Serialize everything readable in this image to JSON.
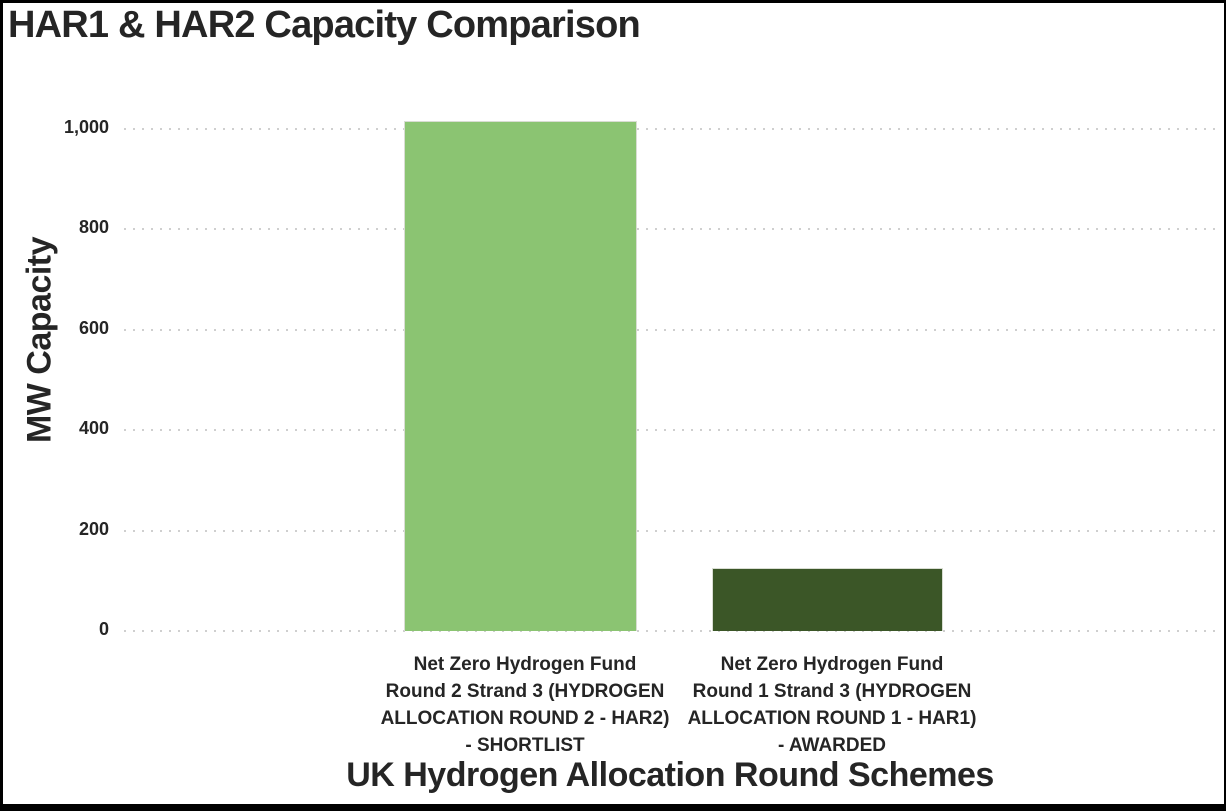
{
  "chart": {
    "title": "HAR1 & HAR2 Capacity Comparison",
    "y_axis": {
      "label": "MW Capacity",
      "ticks": [
        "1,000",
        "800",
        "600",
        "400",
        "200",
        "0"
      ]
    },
    "x_axis": {
      "label": "UK Hydrogen Allocation Round Schemes"
    },
    "category_label_lines": [
      [
        "Net Zero Hydrogen Fund",
        "Round 2 Strand 3 (HYDROGEN",
        "ALLOCATION ROUND 2 - HAR2)",
        "- SHORTLIST"
      ],
      [
        "Net Zero Hydrogen Fund",
        "Round 1 Strand 3 (HYDROGEN",
        "ALLOCATION ROUND 1 - HAR1)",
        "- AWARDED"
      ]
    ]
  },
  "chart_data": {
    "type": "bar",
    "title": "HAR1 & HAR2 Capacity Comparison",
    "xlabel": "UK Hydrogen Allocation Round Schemes",
    "ylabel": "MW Capacity",
    "categories": [
      "Net Zero Hydrogen Fund Round 2 Strand 3 (HYDROGEN ALLOCATION ROUND 2 - HAR2) - SHORTLIST",
      "Net Zero Hydrogen Fund Round 1 Strand 3 (HYDROGEN ALLOCATION ROUND 1 - HAR1) - AWARDED"
    ],
    "values": [
      1015,
      125
    ],
    "unit": "MW",
    "bar_colors": [
      "#8BC472",
      "#3B5627"
    ],
    "ylim": [
      0,
      1015
    ],
    "yticks": [
      0,
      200,
      400,
      600,
      800,
      1000
    ],
    "grid": "horizontal-dotted",
    "grid_color": "#cfcfcf",
    "legend": "none",
    "background": "#ffffff",
    "text_color": "#252525"
  }
}
